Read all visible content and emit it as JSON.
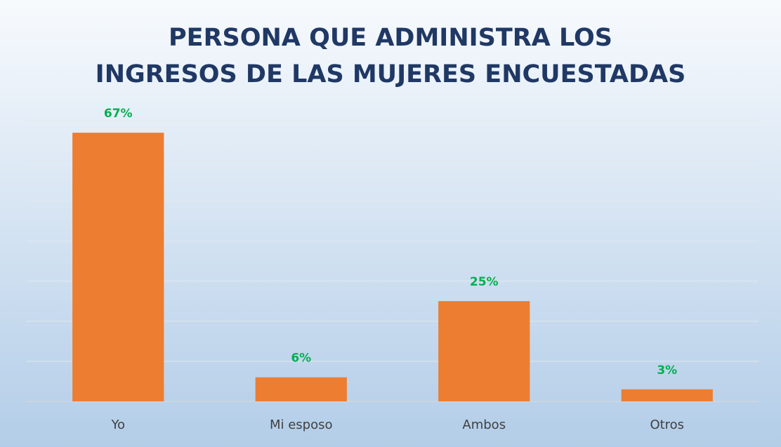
{
  "chart_data": {
    "type": "bar",
    "title": [
      "PERSONA QUE ADMINISTRA LOS",
      "INGRESOS DE LAS MUJERES ENCUESTADAS"
    ],
    "categories": [
      "Yo",
      "Mi esposo",
      "Ambos",
      "Otros"
    ],
    "values": [
      67,
      6,
      25,
      3
    ],
    "value_labels": [
      "67%",
      "6%",
      "25%",
      "3%"
    ],
    "color": "#ed7d31",
    "ylim": [
      0,
      70
    ],
    "yticks": [
      0,
      10,
      20,
      30,
      40,
      50,
      60,
      70
    ],
    "grid": true
  }
}
